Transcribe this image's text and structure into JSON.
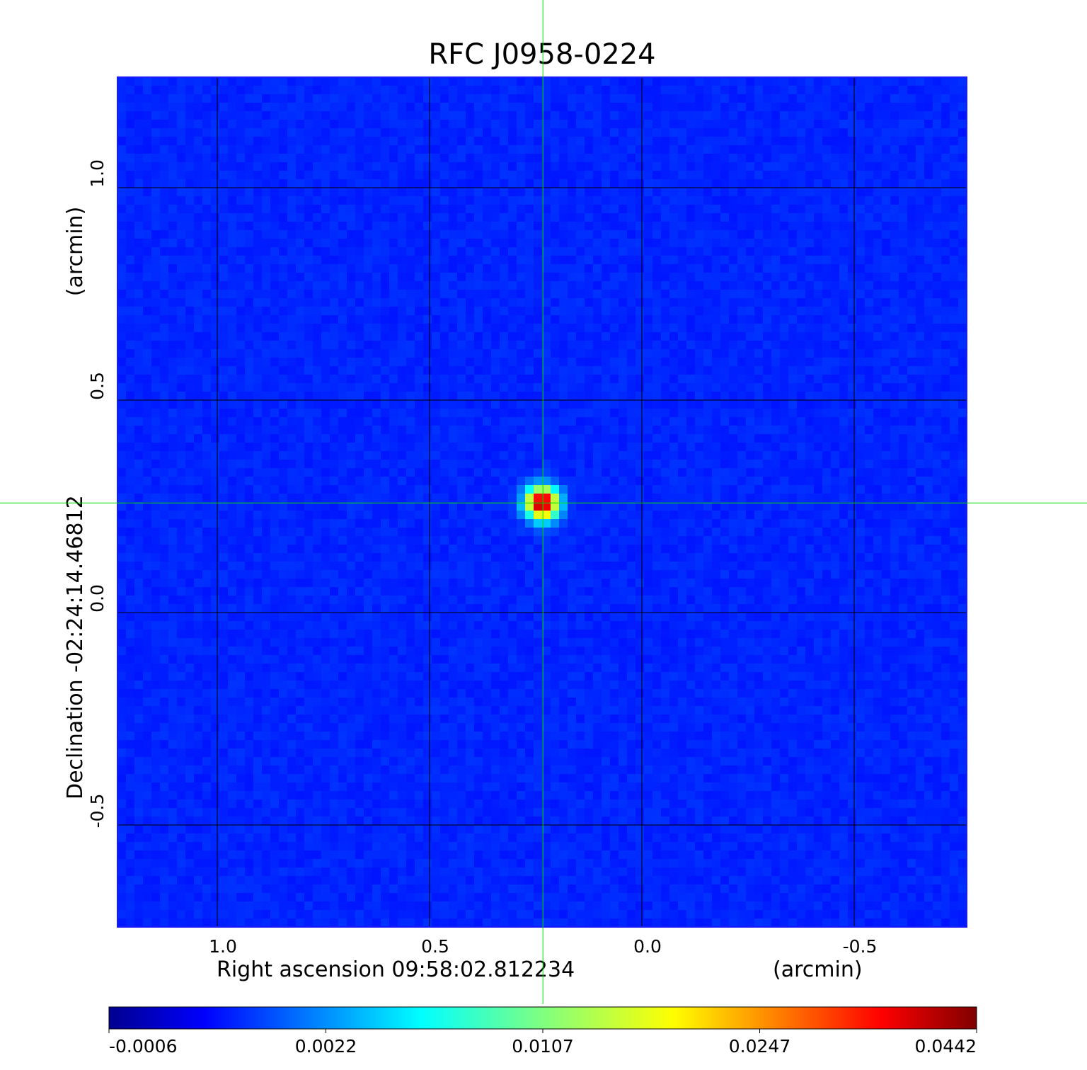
{
  "chart_data": {
    "type": "heatmap",
    "title": "RFC J0958-0224",
    "title_color": "#0a0adf",
    "xlabel": "Right ascension  09:58:02.812234",
    "xunit": "(arcmin)",
    "ylabel": "Declination  -02:24:14.46812",
    "yunit": "(arcmin)",
    "x_ticks": [
      1.0,
      0.5,
      0.0,
      -0.5
    ],
    "x_tick_labels": [
      "1.0",
      "0.5",
      "0.0",
      "-0.5"
    ],
    "y_ticks": [
      1.0,
      0.5,
      0.0,
      -0.5
    ],
    "y_tick_labels": [
      "1.0",
      "0.5",
      "0.0",
      "-0.5"
    ],
    "xlim": [
      1.235,
      -0.765
    ],
    "ylim": [
      -0.74,
      1.26
    ],
    "grid": true,
    "crosshair": {
      "x": 0.233,
      "y": 0.258,
      "color": "#00e000"
    },
    "source_peak": {
      "x": 0.235,
      "y": 0.258,
      "value": 0.0442
    },
    "colormap": "jet",
    "colorbar_ticks": [
      "-0.0006",
      "0.0022",
      "0.0107",
      "0.0247",
      "0.0442"
    ],
    "value_range": [
      -0.0006,
      0.0442
    ]
  }
}
